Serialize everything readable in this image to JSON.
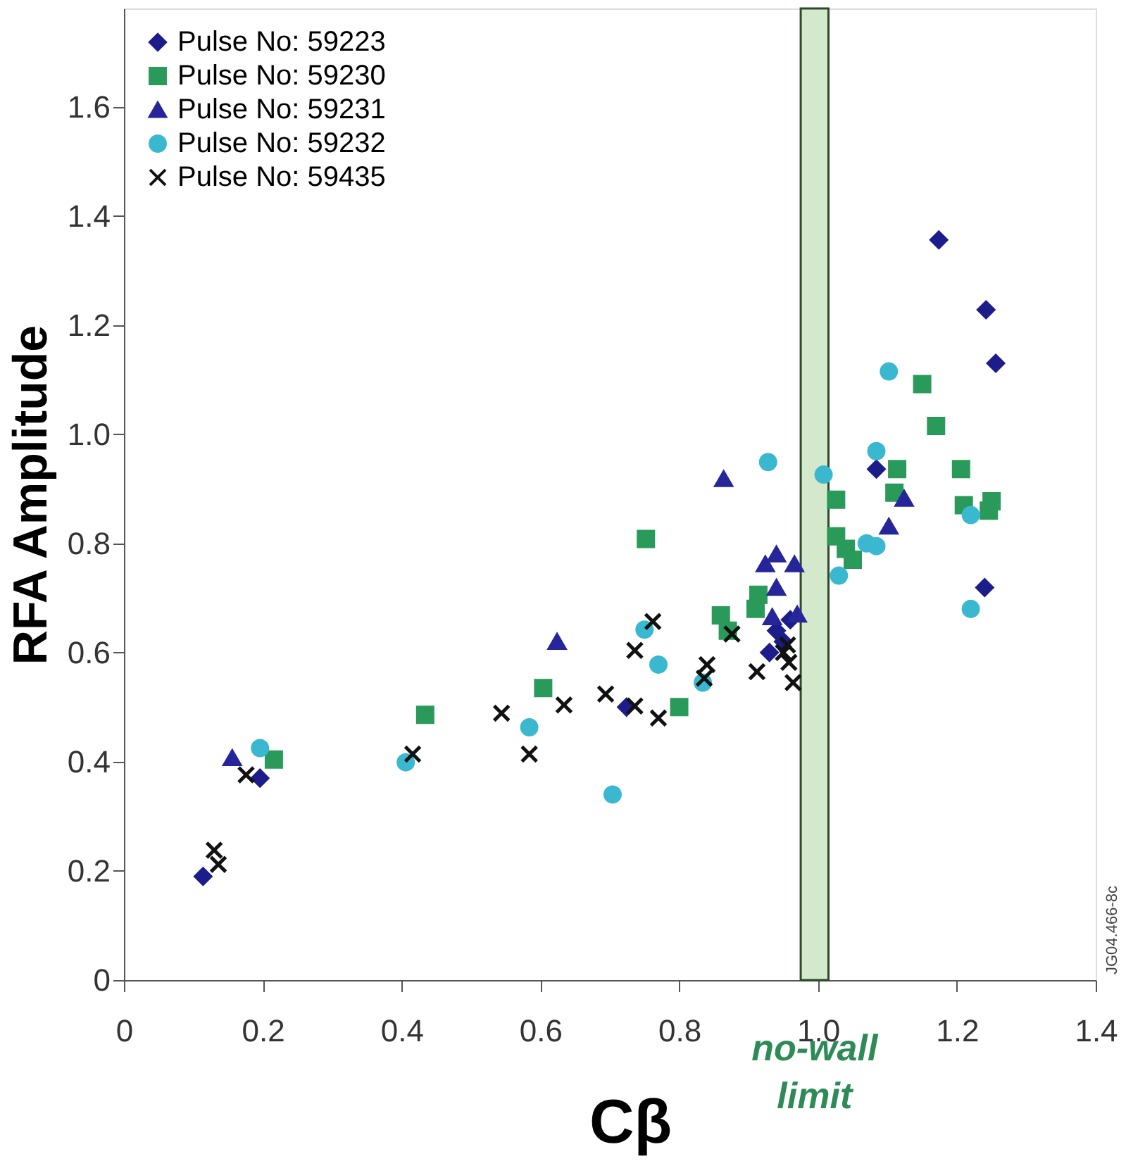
{
  "chart_data": {
    "type": "scatter",
    "xlabel": "Cβ",
    "ylabel": "RFA Amplitude",
    "xlim": [
      0,
      1.4
    ],
    "ylim": [
      0,
      1.78
    ],
    "xticks": [
      0,
      0.2,
      0.4,
      0.6,
      0.8,
      {
        "value": 1,
        "label": "1.0"
      },
      1.2,
      1.4
    ],
    "yticks": [
      0,
      0.2,
      0.4,
      0.6,
      0.8,
      {
        "value": 1,
        "label": "1.0"
      },
      1.2,
      1.4,
      1.6
    ],
    "grid": false,
    "legend": "top left",
    "bands": [
      {
        "axis": "x",
        "from": 0.975,
        "to": 1.015,
        "label": "no-wall limit",
        "color": "#d4e8cc"
      }
    ],
    "annotations": [
      "JG04.466-8c"
    ],
    "series": [
      {
        "name": "Pulse No: 59223",
        "color": "#1c1c8a",
        "marker": "diamond",
        "x": [
          0.114,
          0.196,
          1.174,
          1.242,
          1.256,
          1.084,
          1.24,
          0.724,
          0.94,
          0.95,
          0.96,
          0.93
        ],
        "values": [
          0.19,
          0.37,
          1.356,
          1.228,
          1.13,
          0.936,
          0.719,
          0.5,
          0.64,
          0.62,
          0.66,
          0.6
        ]
      },
      {
        "name": "Pulse No: 59230",
        "color": "#2a9a5a",
        "marker": "square",
        "x": [
          0.216,
          0.434,
          0.604,
          0.752,
          1.15,
          1.17,
          1.114,
          1.206,
          1.11,
          1.21,
          1.25,
          1.246,
          1.026,
          1.026,
          1.04,
          1.05,
          0.8,
          0.86,
          0.914,
          0.91,
          0.87
        ],
        "values": [
          0.404,
          0.486,
          0.535,
          0.808,
          1.092,
          1.015,
          0.936,
          0.936,
          0.893,
          0.87,
          0.877,
          0.86,
          0.88,
          0.813,
          0.79,
          0.77,
          0.5,
          0.668,
          0.706,
          0.68,
          0.64
        ]
      },
      {
        "name": "Pulse No: 59231",
        "color": "#26269a",
        "marker": "triangle",
        "x": [
          0.156,
          0.864,
          1.124,
          1.102,
          0.624,
          0.924,
          0.94,
          0.966,
          0.94,
          0.934,
          0.97
        ],
        "values": [
          0.407,
          0.918,
          0.882,
          0.831,
          0.62,
          0.762,
          0.719,
          0.762,
          0.78,
          0.665,
          0.67
        ]
      },
      {
        "name": "Pulse No: 59232",
        "color": "#3ab8d0",
        "marker": "circle",
        "x": [
          0.196,
          0.406,
          0.584,
          0.704,
          0.77,
          0.75,
          0.834,
          1.22,
          1.102,
          0.928,
          1.084,
          1.008,
          1.22,
          1.084,
          1.07,
          1.03
        ],
        "values": [
          0.425,
          0.399,
          0.463,
          0.34,
          0.578,
          0.642,
          0.545,
          0.68,
          1.115,
          0.949,
          0.969,
          0.926,
          0.852,
          0.795,
          0.8,
          0.741
        ]
      },
      {
        "name": "Pulse No: 59435",
        "color": "#111111",
        "marker": "cross",
        "x": [
          0.13,
          0.136,
          0.176,
          0.416,
          0.544,
          0.584,
          0.634,
          0.694,
          0.736,
          0.77,
          0.736,
          0.762,
          0.84,
          0.836,
          0.876,
          0.912,
          0.956,
          0.958,
          0.964,
          0.95
        ],
        "values": [
          0.238,
          0.212,
          0.376,
          0.414,
          0.489,
          0.414,
          0.504,
          0.524,
          0.502,
          0.48,
          0.604,
          0.657,
          0.578,
          0.553,
          0.634,
          0.565,
          0.614,
          0.582,
          0.545,
          0.6
        ]
      }
    ]
  }
}
